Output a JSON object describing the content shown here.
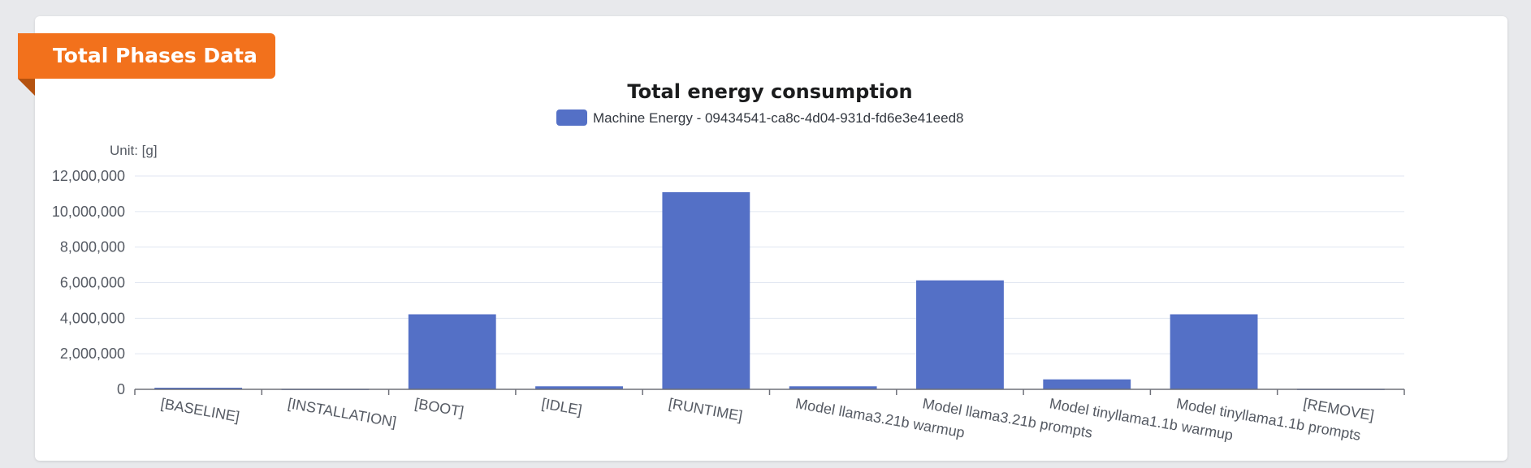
{
  "panel": {
    "badge_label": "Total Phases Data",
    "accent_color": "#f2711c"
  },
  "chart_data": {
    "type": "bar",
    "title": "Total energy consumption",
    "unit_label": "Unit: [g]",
    "legend_position": "top-center",
    "grid": true,
    "series": [
      {
        "name": "Machine Energy - 09434541-ca8c-4d04-931d-fd6e3e41eed8",
        "color": "#5470c6",
        "values": [
          90000,
          30000,
          4220000,
          170000,
          11090000,
          170000,
          6130000,
          560000,
          4220000,
          30000
        ]
      }
    ],
    "categories": [
      "[BASELINE]",
      "[INSTALLATION]",
      "[BOOT]",
      "[IDLE]",
      "[RUNTIME]",
      "Model llama3.21b warmup",
      "Model llama3.21b prompts",
      "Model tinyllama1.1b warmup",
      "Model tinyllama1.1b prompts",
      "[REMOVE]"
    ],
    "ylim": [
      0,
      12000000
    ],
    "yticks": [
      "0",
      "2,000,000",
      "4,000,000",
      "6,000,000",
      "8,000,000",
      "10,000,000",
      "12,000,000"
    ],
    "ytick_values": [
      0,
      2000000,
      4000000,
      6000000,
      8000000,
      10000000,
      12000000
    ]
  }
}
